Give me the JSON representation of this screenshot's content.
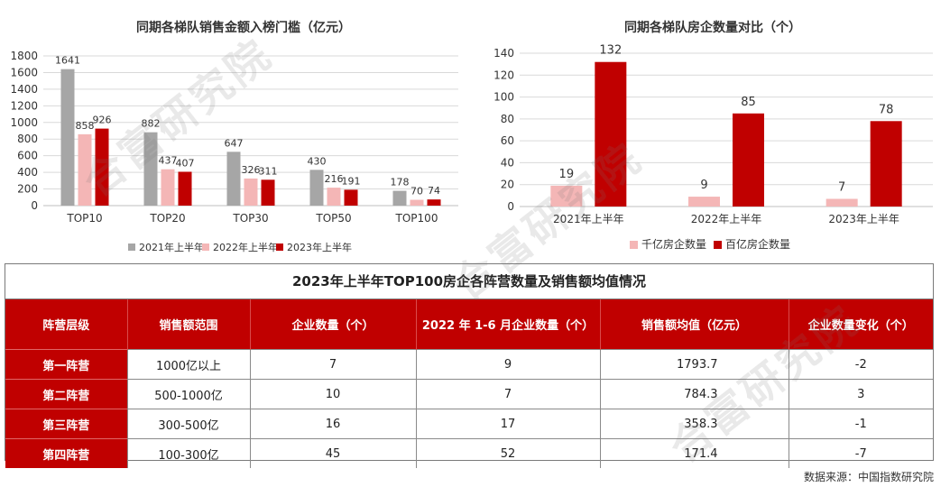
{
  "chart_data": [
    {
      "type": "bar",
      "title": "同期各梯队销售金额入榜门槛（亿元）",
      "categories": [
        "TOP10",
        "TOP20",
        "TOP30",
        "TOP50",
        "TOP100"
      ],
      "ylim": [
        0,
        1800
      ],
      "yticks": [
        0,
        200,
        400,
        600,
        800,
        1000,
        1200,
        1400,
        1600,
        1800
      ],
      "grid": true,
      "legend": "bottom",
      "series": [
        {
          "name": "2021年上半年",
          "color": "#a6a6a6",
          "values": [
            1641,
            882,
            647,
            430,
            178
          ]
        },
        {
          "name": "2022年上半年",
          "color": "#f4b6b6",
          "values": [
            858,
            437,
            326,
            216,
            70
          ]
        },
        {
          "name": "2023年上半年",
          "color": "#c00000",
          "values": [
            926,
            407,
            311,
            191,
            74
          ]
        }
      ]
    },
    {
      "type": "bar",
      "title": "同期各梯队房企数量对比（个）",
      "categories": [
        "2021年上半年",
        "2022年上半年",
        "2023年上半年"
      ],
      "ylim": [
        0,
        140
      ],
      "yticks": [
        0,
        20,
        40,
        60,
        80,
        100,
        120,
        140
      ],
      "grid": true,
      "legend": "bottom",
      "series": [
        {
          "name": "千亿房企数量",
          "color": "#f4b6b6",
          "values": [
            19,
            9,
            7
          ]
        },
        {
          "name": "百亿房企数量",
          "color": "#c00000",
          "values": [
            132,
            85,
            78
          ]
        }
      ]
    }
  ],
  "table": {
    "title": "2023年上半年TOP100房企各阵营数量及销售额均值情况",
    "headers": [
      "阵营层级",
      "销售额范围",
      "企业数量（个）",
      "2022 年 1-6 月企业数量（个）",
      "销售额均值（亿元）",
      "企业数量变化（个）"
    ],
    "rows": [
      [
        "第一阵营",
        "1000亿以上",
        "7",
        "9",
        "1793.7",
        "-2"
      ],
      [
        "第二阵营",
        "500-1000亿",
        "10",
        "7",
        "784.3",
        "3"
      ],
      [
        "第三阵营",
        "300-500亿",
        "16",
        "17",
        "358.3",
        "-1"
      ],
      [
        "第四阵营",
        "100-300亿",
        "45",
        "52",
        "171.4",
        "-7"
      ]
    ]
  },
  "source": "数据来源：中国指数研究院",
  "watermark": "合富研究院"
}
